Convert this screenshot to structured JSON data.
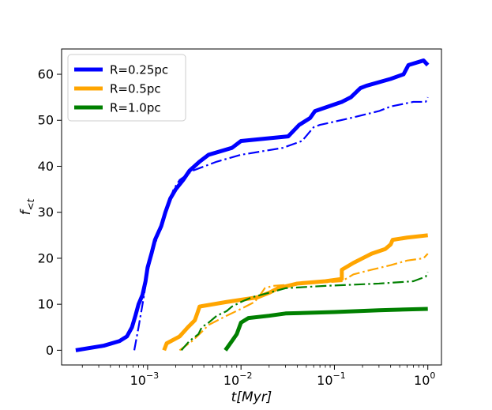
{
  "chart_data": {
    "type": "line",
    "title": "",
    "xlabel": "t[Myr]",
    "ylabel": "f_<t",
    "xscale": "log",
    "xlim": [
      0.00012,
      1.4
    ],
    "ylim": [
      -3.2,
      65.5
    ],
    "grid": false,
    "legend_position": "top-left",
    "x_ticks": [
      {
        "value": 0.001,
        "base": "10",
        "exp": "−3"
      },
      {
        "value": 0.01,
        "base": "10",
        "exp": "−2"
      },
      {
        "value": 0.1,
        "base": "10",
        "exp": "−1"
      },
      {
        "value": 1,
        "base": "10",
        "exp": "0"
      }
    ],
    "y_ticks": [
      0,
      10,
      20,
      30,
      40,
      50,
      60
    ],
    "y_tick_labels": [
      "0",
      "10",
      "20",
      "30",
      "40",
      "50",
      "60"
    ],
    "legend": [
      {
        "label": "R=0.25pc",
        "color": "#0000ff"
      },
      {
        "label": "R=0.5pc",
        "color": "#ffa500"
      },
      {
        "label": "R=1.0pc",
        "color": "#008000"
      }
    ],
    "series": [
      {
        "name": "R=0.25pc",
        "color": "#0000ff",
        "style": "solid",
        "points": [
          [
            0.00017,
            0.0
          ],
          [
            0.00034,
            1.0
          ],
          [
            0.0005,
            2.0
          ],
          [
            0.0006,
            3.0
          ],
          [
            0.00068,
            5.0
          ],
          [
            0.00074,
            7.5
          ],
          [
            0.0008,
            10.0
          ],
          [
            0.00088,
            12.0
          ],
          [
            0.00095,
            15.0
          ],
          [
            0.001,
            18.0
          ],
          [
            0.0011,
            21.0
          ],
          [
            0.0012,
            24.0
          ],
          [
            0.0014,
            27.0
          ],
          [
            0.00155,
            30.0
          ],
          [
            0.00175,
            33.0
          ],
          [
            0.002,
            35.0
          ],
          [
            0.0024,
            37.0
          ],
          [
            0.0028,
            39.0
          ],
          [
            0.0036,
            41.0
          ],
          [
            0.0045,
            42.5
          ],
          [
            0.008,
            44.0
          ],
          [
            0.01,
            45.5
          ],
          [
            0.032,
            46.5
          ],
          [
            0.042,
            49.0
          ],
          [
            0.055,
            50.5
          ],
          [
            0.062,
            52.0
          ],
          [
            0.12,
            54.0
          ],
          [
            0.15,
            55.0
          ],
          [
            0.19,
            57.0
          ],
          [
            0.22,
            57.5
          ],
          [
            0.4,
            59.0
          ],
          [
            0.55,
            60.0
          ],
          [
            0.62,
            62.0
          ],
          [
            0.9,
            63.0
          ],
          [
            1.0,
            62.0
          ]
        ]
      },
      {
        "name": "",
        "color": "#0000ff",
        "style": "dashdot",
        "points": [
          [
            0.00072,
            0.0
          ],
          [
            0.0008,
            5.0
          ],
          [
            0.0009,
            11.0
          ],
          [
            0.001,
            17.0
          ],
          [
            0.00115,
            22.0
          ],
          [
            0.0014,
            27.0
          ],
          [
            0.0016,
            31.0
          ],
          [
            0.0019,
            35.0
          ],
          [
            0.0022,
            37.0
          ],
          [
            0.003,
            39.0
          ],
          [
            0.0055,
            41.0
          ],
          [
            0.01,
            42.5
          ],
          [
            0.028,
            44.0
          ],
          [
            0.045,
            45.5
          ],
          [
            0.06,
            48.5
          ],
          [
            0.07,
            49.0
          ],
          [
            0.15,
            50.5
          ],
          [
            0.3,
            52.0
          ],
          [
            0.4,
            53.0
          ],
          [
            0.7,
            54.0
          ],
          [
            0.95,
            54.0
          ],
          [
            1.0,
            55.0
          ]
        ]
      },
      {
        "name": "R=0.5pc",
        "color": "#ffa500",
        "style": "solid",
        "points": [
          [
            0.0015,
            0.0
          ],
          [
            0.0016,
            1.5
          ],
          [
            0.0022,
            3.0
          ],
          [
            0.0027,
            5.0
          ],
          [
            0.0032,
            6.5
          ],
          [
            0.0034,
            8.0
          ],
          [
            0.0036,
            9.5
          ],
          [
            0.007,
            10.5
          ],
          [
            0.015,
            11.5
          ],
          [
            0.02,
            12.5
          ],
          [
            0.025,
            13.5
          ],
          [
            0.04,
            14.5
          ],
          [
            0.08,
            15.0
          ],
          [
            0.12,
            15.5
          ],
          [
            0.12,
            17.5
          ],
          [
            0.16,
            19.0
          ],
          [
            0.2,
            20.0
          ],
          [
            0.25,
            21.0
          ],
          [
            0.35,
            22.0
          ],
          [
            0.4,
            23.0
          ],
          [
            0.42,
            24.0
          ],
          [
            0.6,
            24.5
          ],
          [
            1.0,
            25.0
          ]
        ]
      },
      {
        "name": "",
        "color": "#ffa500",
        "style": "dashdot",
        "points": [
          [
            0.0022,
            0.0
          ],
          [
            0.003,
            2.0
          ],
          [
            0.0038,
            4.0
          ],
          [
            0.0045,
            5.5
          ],
          [
            0.007,
            7.5
          ],
          [
            0.01,
            9.0
          ],
          [
            0.014,
            10.5
          ],
          [
            0.016,
            12.0
          ],
          [
            0.018,
            13.5
          ],
          [
            0.022,
            14.0
          ],
          [
            0.05,
            14.5
          ],
          [
            0.12,
            15.0
          ],
          [
            0.16,
            16.5
          ],
          [
            0.25,
            17.5
          ],
          [
            0.4,
            18.5
          ],
          [
            0.6,
            19.5
          ],
          [
            0.9,
            20.0
          ],
          [
            1.0,
            21.0
          ]
        ]
      },
      {
        "name": "R=1.0pc",
        "color": "#008000",
        "style": "solid",
        "points": [
          [
            0.0068,
            0.0
          ],
          [
            0.008,
            2.0
          ],
          [
            0.009,
            3.5
          ],
          [
            0.01,
            6.0
          ],
          [
            0.012,
            7.0
          ],
          [
            0.02,
            7.5
          ],
          [
            0.03,
            8.0
          ],
          [
            0.1,
            8.3
          ],
          [
            0.3,
            8.7
          ],
          [
            1.0,
            9.0
          ]
        ]
      },
      {
        "name": "",
        "color": "#008000",
        "style": "dashdot",
        "points": [
          [
            0.0023,
            0.0
          ],
          [
            0.0028,
            2.0
          ],
          [
            0.0035,
            3.5
          ],
          [
            0.0038,
            5.0
          ],
          [
            0.0045,
            6.0
          ],
          [
            0.0055,
            7.5
          ],
          [
            0.007,
            8.5
          ],
          [
            0.008,
            9.5
          ],
          [
            0.01,
            10.5
          ],
          [
            0.013,
            11.5
          ],
          [
            0.02,
            12.5
          ],
          [
            0.03,
            13.5
          ],
          [
            0.08,
            14.0
          ],
          [
            0.3,
            14.5
          ],
          [
            0.7,
            15.0
          ],
          [
            0.95,
            16.0
          ],
          [
            1.0,
            17.0
          ]
        ]
      }
    ]
  }
}
